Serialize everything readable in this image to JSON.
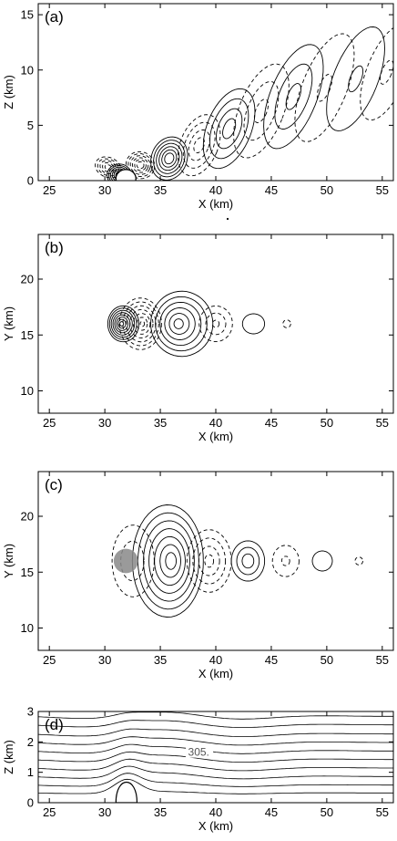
{
  "figure": {
    "panels": [
      {
        "id": "a",
        "label": "(a)",
        "xlabel": "X (km)",
        "ylabel": "Z (km)",
        "xlim": [
          24,
          56
        ],
        "ylim": [
          0,
          16
        ],
        "xticks": [
          25,
          30,
          35,
          40,
          45,
          50,
          55
        ],
        "yticks": [
          0,
          5,
          10,
          15
        ]
      },
      {
        "id": "b",
        "label": "(b)",
        "xlabel": "X (km)",
        "ylabel": "Y (km)",
        "xlim": [
          24,
          56
        ],
        "ylim": [
          8,
          24
        ],
        "xticks": [
          25,
          30,
          35,
          40,
          45,
          50,
          55
        ],
        "yticks": [
          10,
          15,
          20
        ]
      },
      {
        "id": "c",
        "label": "(c)",
        "xlabel": "X (km)",
        "ylabel": "Y (km)",
        "xlim": [
          24,
          56
        ],
        "ylim": [
          8,
          24
        ],
        "xticks": [
          25,
          30,
          35,
          40,
          45,
          50,
          55
        ],
        "yticks": [
          10,
          15,
          20
        ]
      },
      {
        "id": "d",
        "label": "(d)",
        "xlabel": "X (km)",
        "ylabel": "Z (km)",
        "xlim": [
          24,
          56
        ],
        "ylim": [
          0,
          3
        ],
        "xticks": [
          25,
          30,
          35,
          40,
          45,
          50,
          55
        ],
        "yticks": [
          0,
          1,
          2,
          3
        ],
        "contour_label": "305."
      }
    ]
  }
}
